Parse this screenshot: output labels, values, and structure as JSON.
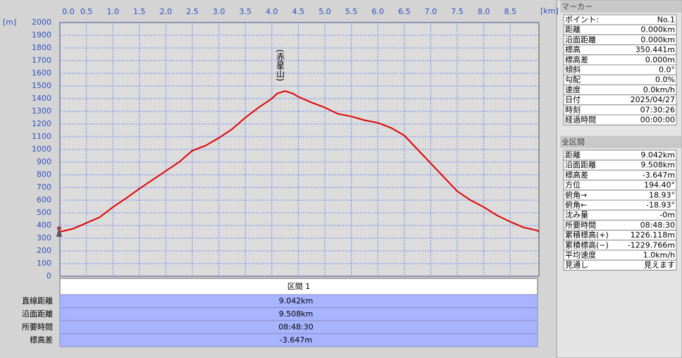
{
  "chart_data": {
    "type": "line",
    "xlabel": "[km]",
    "ylabel": "[m]",
    "annotation": {
      "text": "(赤星山)",
      "x": 4.25
    },
    "x": [
      0,
      0.25,
      0.5,
      0.75,
      1.0,
      1.25,
      1.5,
      1.75,
      2.0,
      2.25,
      2.5,
      2.75,
      3.0,
      3.25,
      3.5,
      3.75,
      4.0,
      4.1,
      4.25,
      4.4,
      4.5,
      4.75,
      5.0,
      5.25,
      5.5,
      5.75,
      6.0,
      6.25,
      6.5,
      6.75,
      7.0,
      7.25,
      7.5,
      7.75,
      8.0,
      8.25,
      8.5,
      8.75,
      9.0,
      9.042
    ],
    "series": [
      {
        "color": "#e00000",
        "values": [
          350,
          375,
          420,
          465,
          545,
          615,
          690,
          760,
          830,
          900,
          990,
          1030,
          1090,
          1160,
          1250,
          1330,
          1400,
          1440,
          1460,
          1440,
          1415,
          1370,
          1330,
          1280,
          1260,
          1230,
          1210,
          1170,
          1110,
          1000,
          890,
          780,
          670,
          600,
          545,
          480,
          430,
          385,
          362,
          350
        ]
      }
    ],
    "xlim": [
      0,
      9.042
    ],
    "xticks": [
      {
        "value": 0,
        "label": "0.0"
      },
      0.5,
      {
        "value": 1,
        "label": "1.0"
      },
      1.5,
      {
        "value": 2,
        "label": "2.0"
      },
      2.5,
      {
        "value": 3,
        "label": "3.0"
      },
      3.5,
      {
        "value": 4,
        "label": "4.0"
      },
      4.5,
      {
        "value": 5,
        "label": "5.0"
      },
      5.5,
      {
        "value": 6,
        "label": "6.0"
      },
      6.5,
      {
        "value": 7,
        "label": "7.0"
      },
      7.5,
      {
        "value": 8,
        "label": "8.0"
      },
      8.5
    ],
    "ylim": [
      0,
      2000
    ],
    "yticks": [
      0,
      100,
      200,
      300,
      400,
      500,
      600,
      700,
      800,
      900,
      1000,
      1100,
      1200,
      1300,
      1400,
      1500,
      1600,
      1700,
      1800,
      1900,
      2000
    ],
    "grid": true
  },
  "section_table": {
    "header": "区間 1",
    "rows": [
      [
        "直線距離",
        "9.042km"
      ],
      [
        "沿面距離",
        "9.508km"
      ],
      [
        "所要時間",
        "08:48:30"
      ],
      [
        "標高差",
        "-3.647m"
      ]
    ]
  },
  "marker_panel": {
    "title": "マーカー",
    "rows": [
      [
        "ポイント:",
        "No.1"
      ],
      [
        "距離",
        "0.000km"
      ],
      [
        "沿面距離",
        "0.000km"
      ],
      [
        "標高",
        "350.441m"
      ],
      [
        "標高差",
        "0.000m"
      ],
      [
        "傾斜",
        "0.0°"
      ],
      [
        "勾配",
        "0.0%"
      ],
      [
        "速度",
        "0.0km/h"
      ],
      [
        "日付",
        "2025/04/27"
      ],
      [
        "時刻",
        "07:30:26"
      ],
      [
        "経過時間",
        "00:00:00"
      ]
    ]
  },
  "total_panel": {
    "title": "全区間",
    "rows": [
      [
        "距離",
        "9.042km"
      ],
      [
        "沿面距離",
        "9.508km"
      ],
      [
        "標高差",
        "-3.647m"
      ],
      [
        "方位",
        "194.40°"
      ],
      [
        "俯角→",
        "18.93°"
      ],
      [
        "俯角←",
        "-18.93°"
      ],
      [
        "沈み量",
        "-0m"
      ],
      [
        "所要時間",
        "08:48:30"
      ],
      [
        "累積標高(+)",
        "1226.118m"
      ],
      [
        "累積標高(−)",
        "-1229.766m"
      ],
      [
        "平均速度",
        "1.0km/h"
      ],
      [
        "見通し",
        "見えます"
      ]
    ]
  }
}
